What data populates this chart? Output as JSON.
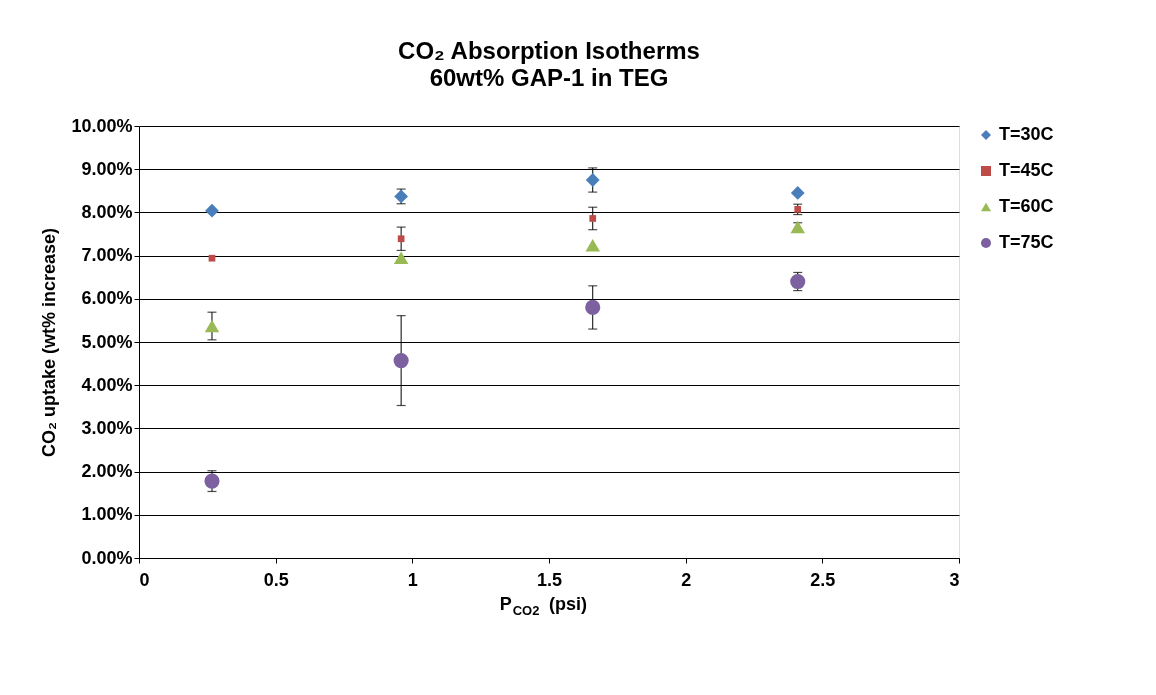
{
  "chart_data": {
    "type": "scatter",
    "title": "CO₂ Absorption Isotherms",
    "subtitle": "60wt% GAP-1 in TEG",
    "xlabel": "P$_{CO2}$ (psi)",
    "ylabel": "CO₂ uptake (wt% increase)",
    "xlim": [
      0,
      3
    ],
    "xticks": [
      0,
      0.5,
      1,
      1.5,
      2,
      2.5,
      3
    ],
    "ylim": [
      0,
      0.1
    ],
    "yticks": [
      {
        "value": 0,
        "label": "0.00%"
      },
      {
        "value": 0.01,
        "label": "1.00%"
      },
      {
        "value": 0.02,
        "label": "2.00%"
      },
      {
        "value": 0.03,
        "label": "3.00%"
      },
      {
        "value": 0.04,
        "label": "4.00%"
      },
      {
        "value": 0.05,
        "label": "5.00%"
      },
      {
        "value": 0.06,
        "label": "6.00%"
      },
      {
        "value": 0.07,
        "label": "7.00%"
      },
      {
        "value": 0.08,
        "label": "8.00%"
      },
      {
        "value": 0.09,
        "label": "9.00%"
      },
      {
        "value": 0.1,
        "label": "10.00%"
      }
    ],
    "grid": "y",
    "legend": "right",
    "x": [
      0.267,
      0.959,
      1.66,
      2.41
    ],
    "series": [
      {
        "name": "T=30C",
        "color": "#4a7ebb",
        "marker": "diamond",
        "values": [
          0.0804,
          0.0837,
          0.0875,
          0.0845
        ],
        "errors": [
          null,
          0.0017,
          0.0028,
          null
        ]
      },
      {
        "name": "T=45C",
        "color": "#be4b48",
        "marker": "square",
        "values": [
          0.0694,
          0.0739,
          0.0786,
          0.0807
        ],
        "errors": [
          null,
          0.0027,
          0.0026,
          0.0012
        ]
      },
      {
        "name": "T=60C",
        "color": "#98b954",
        "marker": "triangle",
        "values": [
          0.0537,
          0.0695,
          0.0724,
          0.0766
        ],
        "errors": [
          0.0032,
          null,
          null,
          0.001
        ]
      },
      {
        "name": "T=75C",
        "color": "#7d60a0",
        "marker": "circle",
        "values": [
          0.0178,
          0.0457,
          0.058,
          0.064
        ],
        "errors": [
          0.0024,
          0.0104,
          0.005,
          0.0021
        ]
      }
    ]
  }
}
